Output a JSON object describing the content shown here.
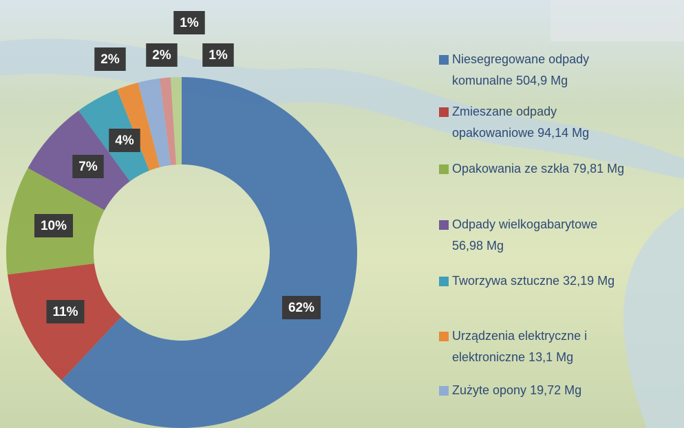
{
  "chart_data": {
    "type": "donut",
    "categories": [
      "Niesegregowane odpady komunalne 504,9 Mg",
      "Zmieszane odpady opakowaniowe 94,14 Mg",
      "Opakowania ze szkła 79,81 Mg",
      "Odpady wielkogabarytowe 56,98 Mg",
      "Tworzywa sztuczne 32,19 Mg",
      "Urządzenia elektryczne i elektroniczne 13,1 Mg",
      "Zużyte opony 19,72 Mg",
      null,
      null
    ],
    "values": [
      62,
      11,
      10,
      7,
      4,
      2,
      2,
      1,
      1
    ],
    "value_labels": [
      "62%",
      "11%",
      "10%",
      "7%",
      "4%",
      "2%",
      "2%",
      "1%",
      "1%"
    ],
    "colors": [
      "#4a76ad",
      "#b8443f",
      "#8fae4d",
      "#735a97",
      "#3f9fb6",
      "#e98a38",
      "#90acd4",
      "#d48d8b",
      "#b8cf8e"
    ],
    "legend": "right"
  }
}
